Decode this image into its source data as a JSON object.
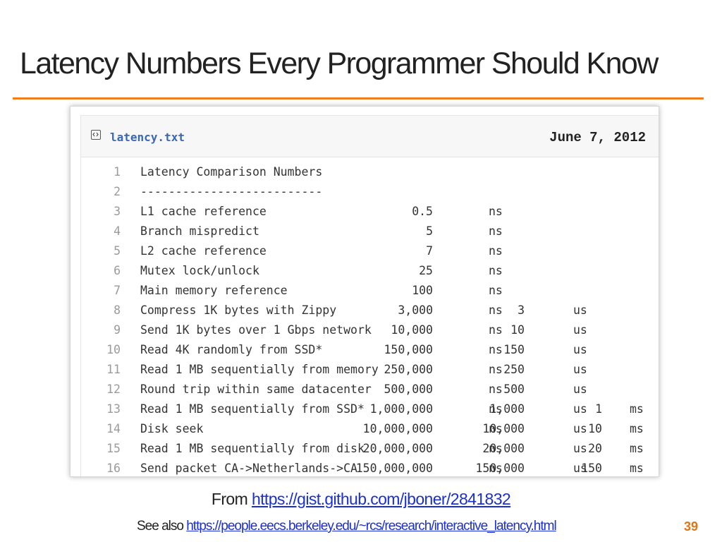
{
  "slide": {
    "title": "Latency Numbers Every Programmer Should Know",
    "page_number": "39",
    "accent_color": "#f07e1f"
  },
  "gist": {
    "icon": "code-file-icon",
    "filename": "latency.txt",
    "date": "June 7, 2012",
    "lines": [
      {
        "num": "1",
        "label": "Latency Comparison Numbers",
        "ns": "",
        "ns_unit": "",
        "us": "",
        "us_unit": "",
        "ms": "",
        "ms_unit": ""
      },
      {
        "num": "2",
        "label": "--------------------------",
        "ns": "",
        "ns_unit": "",
        "us": "",
        "us_unit": "",
        "ms": "",
        "ms_unit": ""
      },
      {
        "num": "3",
        "label": "L1 cache reference",
        "ns": "0.5",
        "ns_unit": "ns",
        "us": "",
        "us_unit": "",
        "ms": "",
        "ms_unit": ""
      },
      {
        "num": "4",
        "label": "Branch mispredict",
        "ns": "5",
        "ns_unit": "ns",
        "us": "",
        "us_unit": "",
        "ms": "",
        "ms_unit": ""
      },
      {
        "num": "5",
        "label": "L2 cache reference",
        "ns": "7",
        "ns_unit": "ns",
        "us": "",
        "us_unit": "",
        "ms": "",
        "ms_unit": ""
      },
      {
        "num": "6",
        "label": "Mutex lock/unlock",
        "ns": "25",
        "ns_unit": "ns",
        "us": "",
        "us_unit": "",
        "ms": "",
        "ms_unit": ""
      },
      {
        "num": "7",
        "label": "Main memory reference",
        "ns": "100",
        "ns_unit": "ns",
        "us": "",
        "us_unit": "",
        "ms": "",
        "ms_unit": ""
      },
      {
        "num": "8",
        "label": "Compress 1K bytes with Zippy",
        "ns": "3,000",
        "ns_unit": "ns",
        "us": "3",
        "us_unit": "us",
        "ms": "",
        "ms_unit": ""
      },
      {
        "num": "9",
        "label": "Send 1K bytes over 1 Gbps network",
        "ns": "10,000",
        "ns_unit": "ns",
        "us": "10",
        "us_unit": "us",
        "ms": "",
        "ms_unit": ""
      },
      {
        "num": "10",
        "label": "Read 4K randomly from SSD*",
        "ns": "150,000",
        "ns_unit": "ns",
        "us": "150",
        "us_unit": "us",
        "ms": "",
        "ms_unit": ""
      },
      {
        "num": "11",
        "label": "Read 1 MB sequentially from memory",
        "ns": "250,000",
        "ns_unit": "ns",
        "us": "250",
        "us_unit": "us",
        "ms": "",
        "ms_unit": ""
      },
      {
        "num": "12",
        "label": "Round trip within same datacenter",
        "ns": "500,000",
        "ns_unit": "ns",
        "us": "500",
        "us_unit": "us",
        "ms": "",
        "ms_unit": ""
      },
      {
        "num": "13",
        "label": "Read 1 MB sequentially from SSD*",
        "ns": "1,000,000",
        "ns_unit": "ns",
        "us": "1,000",
        "us_unit": "us",
        "ms": "1",
        "ms_unit": "ms"
      },
      {
        "num": "14",
        "label": "Disk seek",
        "ns": "10,000,000",
        "ns_unit": "ns",
        "us": "10,000",
        "us_unit": "us",
        "ms": "10",
        "ms_unit": "ms"
      },
      {
        "num": "15",
        "label": "Read 1 MB sequentially from disk",
        "ns": "20,000,000",
        "ns_unit": "ns",
        "us": "20,000",
        "us_unit": "us",
        "ms": "20",
        "ms_unit": "ms"
      },
      {
        "num": "16",
        "label": "Send packet CA->Netherlands->CA",
        "ns": "150,000,000",
        "ns_unit": "ns",
        "us": "150,000",
        "us_unit": "us",
        "ms": "150",
        "ms_unit": "ms"
      }
    ]
  },
  "footer": {
    "from_prefix": "From ",
    "from_link": "https://gist.github.com/jboner/2841832",
    "see_prefix": "See also ",
    "see_link": "https://people.eecs.berkeley.edu/~rcs/research/interactive_latency.html"
  }
}
